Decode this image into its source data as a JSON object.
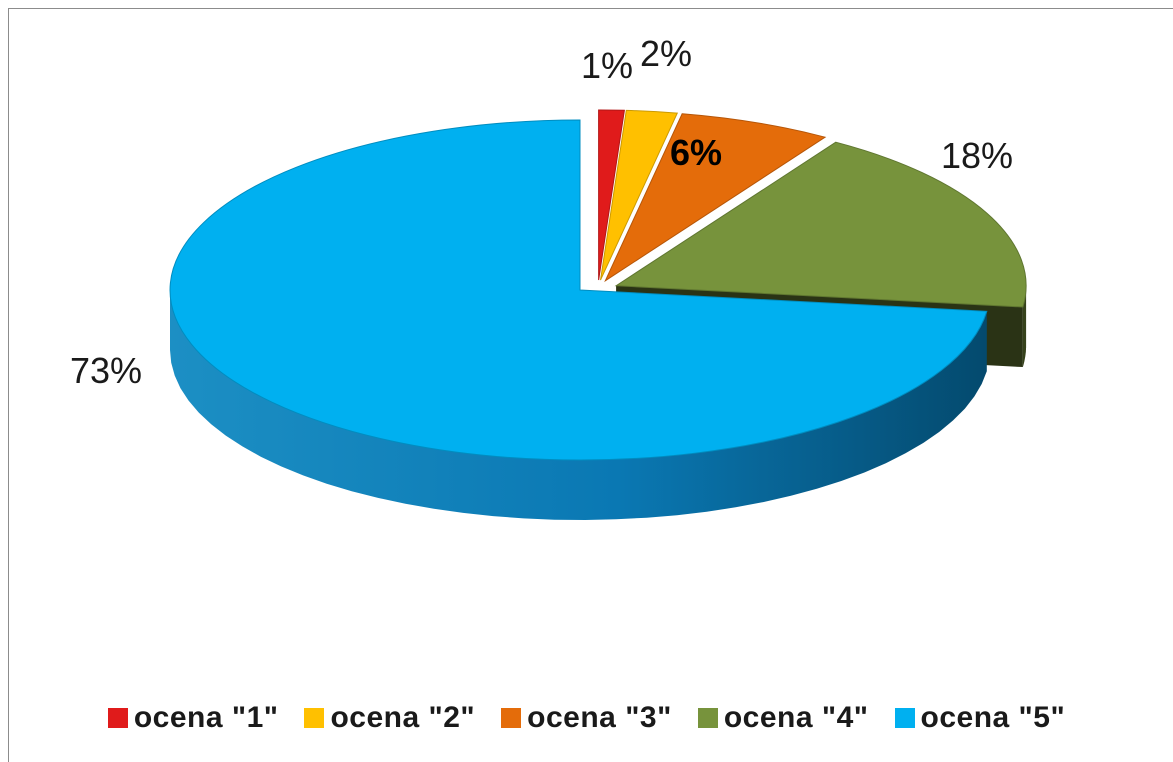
{
  "chart_data": {
    "type": "pie",
    "style": "3d-exploded",
    "categories": [
      "ocena \"1\"",
      "ocena \"2\"",
      "ocena \"3\"",
      "ocena \"4\"",
      "ocena \"5\""
    ],
    "values": [
      1,
      2,
      6,
      18,
      73
    ],
    "data_labels": [
      "1%",
      "2%",
      "6%",
      "18%",
      "73%"
    ],
    "colors": [
      "#e01b1b",
      "#ffc000",
      "#e46c0a",
      "#77933c",
      "#00b0f0"
    ],
    "legend_position": "bottom",
    "title": ""
  }
}
